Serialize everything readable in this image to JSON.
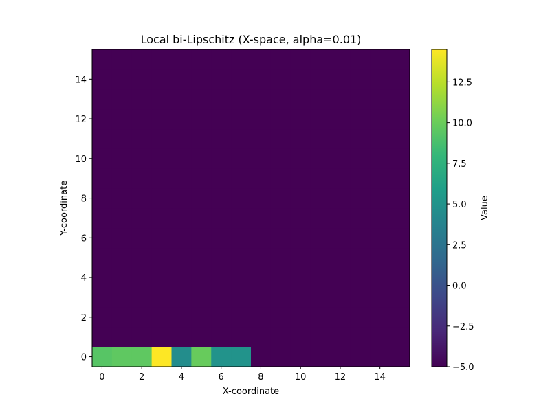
{
  "chart_data": {
    "type": "heatmap",
    "title": "Local bi-Lipschitz (X-space, alpha=0.01)",
    "xlabel": "X-coordinate",
    "ylabel": "Y-coordinate",
    "colorbar_label": "Value",
    "colormap": "viridis",
    "xlim": [
      -0.5,
      15.5
    ],
    "ylim": [
      -0.5,
      15.5
    ],
    "vmin": -5.0,
    "vmax": 14.5,
    "grid": false,
    "x_ticks": [
      0,
      2,
      4,
      6,
      8,
      10,
      12,
      14
    ],
    "x_tick_labels": [
      "0",
      "2",
      "4",
      "6",
      "8",
      "10",
      "12",
      "14"
    ],
    "y_ticks": [
      0,
      2,
      4,
      6,
      8,
      10,
      12,
      14
    ],
    "y_tick_labels": [
      "0",
      "2",
      "4",
      "6",
      "8",
      "10",
      "12",
      "14"
    ],
    "colorbar_ticks": [
      -5.0,
      -2.5,
      0.0,
      2.5,
      5.0,
      7.5,
      10.0,
      12.5
    ],
    "colorbar_tick_labels": [
      "−5.0",
      "−2.5",
      "0.0",
      "2.5",
      "5.0",
      "7.5",
      "10.0",
      "12.5"
    ],
    "grid_size": [
      16,
      16
    ],
    "background_value": -5.0,
    "cells": [
      {
        "x": 0,
        "y": 0,
        "value": 9.3
      },
      {
        "x": 1,
        "y": 0,
        "value": 9.6
      },
      {
        "x": 2,
        "y": 0,
        "value": 9.6
      },
      {
        "x": 3,
        "y": 0,
        "value": 14.5
      },
      {
        "x": 4,
        "y": 0,
        "value": 4.5
      },
      {
        "x": 5,
        "y": 0,
        "value": 9.9
      },
      {
        "x": 6,
        "y": 0,
        "value": 5.0
      },
      {
        "x": 7,
        "y": 0,
        "value": 5.0
      }
    ]
  }
}
